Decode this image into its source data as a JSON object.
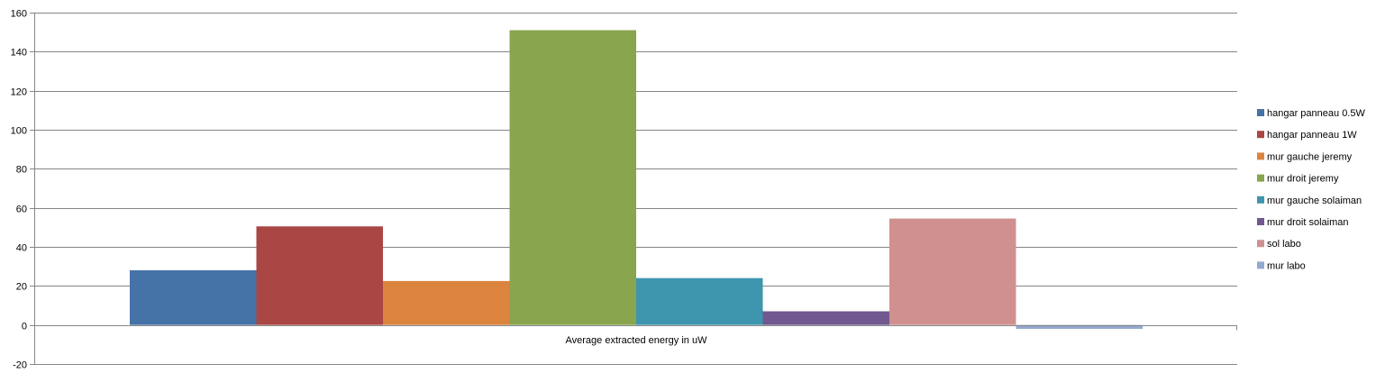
{
  "chart_data": {
    "type": "bar",
    "categories": [
      "Average extracted energy in uW"
    ],
    "ylim": [
      -20,
      160
    ],
    "yticks": [
      -20,
      0,
      20,
      40,
      60,
      80,
      100,
      120,
      140,
      160
    ],
    "grid": true,
    "legend_position": "right",
    "series": [
      {
        "name": "hangar panneau 0.5W",
        "values": [
          28
        ],
        "color": "#4572A7"
      },
      {
        "name": "hangar panneau 1W",
        "values": [
          50.5
        ],
        "color": "#AA4643"
      },
      {
        "name": "mur gauche jeremy",
        "values": [
          22.5
        ],
        "color": "#DB843D"
      },
      {
        "name": "mur droit jeremy",
        "values": [
          151
        ],
        "color": "#89A54E"
      },
      {
        "name": "mur gauche solaiman",
        "values": [
          24
        ],
        "color": "#3D96AE"
      },
      {
        "name": "mur droit solaiman",
        "values": [
          7
        ],
        "color": "#71588F"
      },
      {
        "name": "sol labo",
        "values": [
          54.5
        ],
        "color": "#D09090"
      },
      {
        "name": "mur labo",
        "values": [
          -2
        ],
        "color": "#93A9CF"
      }
    ]
  }
}
